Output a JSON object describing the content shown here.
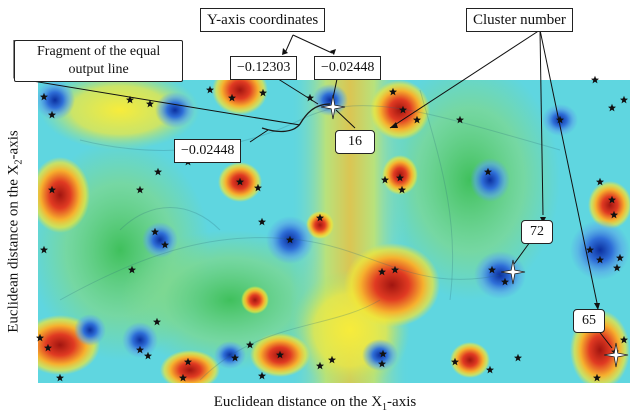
{
  "annotations": {
    "y_axis_coordinates": "Y-axis coordinates",
    "cluster_number": "Cluster number",
    "fragment_line_1": "Fragment of the equal",
    "fragment_line_2": "output line",
    "value_a": "−0.12303",
    "value_b": "−0.02448",
    "value_c": "−0.02448"
  },
  "clusters": [
    {
      "label": "16"
    },
    {
      "label": "72"
    },
    {
      "label": "65"
    }
  ],
  "axes": {
    "x_label": "Euclidean distance on the X",
    "x_sub": "1",
    "x_suffix": "-axis",
    "y_label": "Euclidean distance on the X",
    "y_sub": "2",
    "y_suffix": "-axis"
  },
  "colors": {
    "background": "#5fd6e0",
    "red": "#d12a20",
    "yellow": "#f2e536",
    "green": "#4fc86a",
    "blue": "#1a4fc4"
  }
}
